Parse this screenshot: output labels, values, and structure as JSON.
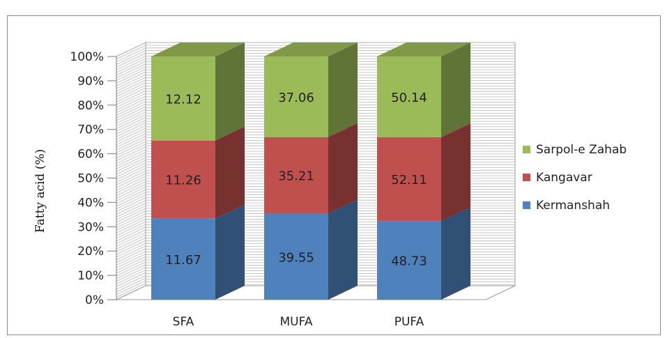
{
  "chart_data": {
    "type": "bar",
    "stacked": "percent",
    "ylabel": "Fatty acid (%)",
    "xlabel": "",
    "categories": [
      "SFA",
      "MUFA",
      "PUFA"
    ],
    "ylim": [
      0,
      100
    ],
    "yticks": [
      "0%",
      "10%",
      "20%",
      "30%",
      "40%",
      "50%",
      "60%",
      "70%",
      "80%",
      "90%",
      "100%"
    ],
    "legend_position": "right",
    "series": [
      {
        "name": "Kermanshah",
        "color": "#4f81bd",
        "values": [
          11.67,
          39.55,
          48.73
        ]
      },
      {
        "name": "Kangavar",
        "color": "#c0504d",
        "values": [
          11.26,
          35.21,
          52.11
        ]
      },
      {
        "name": "Sarpol-e Zahab",
        "color": "#9bbb59",
        "values": [
          12.12,
          37.06,
          50.14
        ]
      }
    ]
  }
}
